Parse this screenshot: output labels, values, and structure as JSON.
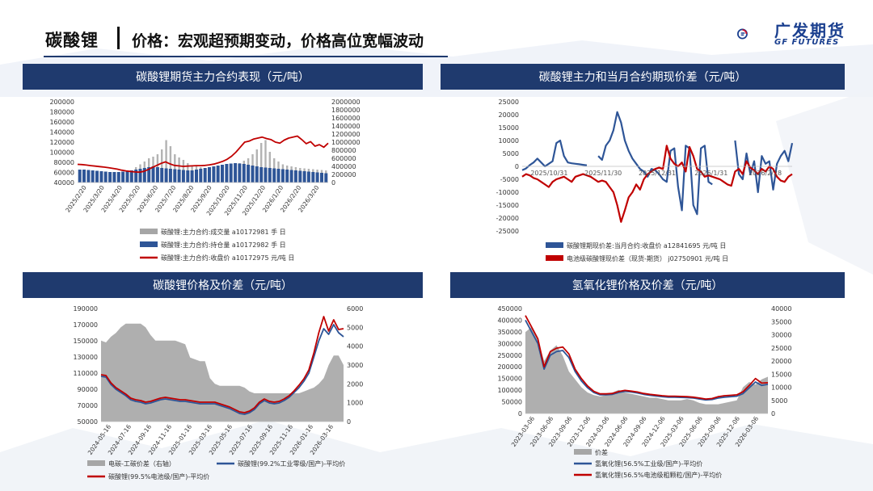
{
  "page": {
    "title": "碳酸锂",
    "subtitle": "价格：宏观超预期变动，价格高位宽幅波动",
    "logo_cn": "广发期货",
    "logo_en": "GF FUTURES",
    "colors": {
      "header_bg": "#1f3a6e",
      "accent_red": "#c8102e",
      "accent_blue": "#1a3f8f"
    }
  },
  "panels": [
    {
      "header": "碳酸锂期货主力合约表现（元/吨）"
    },
    {
      "header": "碳酸锂主力和当月合约期现价差（元/吨）"
    },
    {
      "header": "碳酸锂价格及价差（元/吨）"
    },
    {
      "header": "氢氧化锂价格及价差（元/吨）"
    }
  ],
  "chart_data": [
    {
      "type": "bar",
      "title": "碳酸锂期货主力合约表现（元/吨）",
      "x_ticks": [
        "2025/2/20",
        "2025/3/20",
        "2025/4/20",
        "2025/5/20",
        "2025/6/20",
        "2025/7/20",
        "2025/8/20",
        "2025/9/20",
        "2025/10/20",
        "2025/11/20",
        "2025/12/20",
        "2026/1/20",
        "2026/2/20",
        "2026/3/20"
      ],
      "y_left_ticks": [
        "40000",
        "60000",
        "80000",
        "100000",
        "120000",
        "140000",
        "160000",
        "180000",
        "200000"
      ],
      "y_right_ticks": [
        "0",
        "200000",
        "400000",
        "600000",
        "800000",
        "1000000",
        "1200000",
        "1400000",
        "1600000",
        "1800000",
        "2000000"
      ],
      "ylim_left": [
        40000,
        200000
      ],
      "ylim_right": [
        0,
        2000000
      ],
      "series": [
        {
          "name": "碳酸锂:主力合约:成交量 a10172981 手 日",
          "axis": "right",
          "kind": "bar",
          "color": "#a6a6a6",
          "values": [
            180000,
            160000,
            170000,
            150000,
            140000,
            130000,
            160000,
            200000,
            240000,
            200000,
            260000,
            280000,
            300000,
            380000,
            450000,
            520000,
            600000,
            640000,
            700000,
            820000,
            1050000,
            900000,
            700000,
            620000,
            560000,
            480000,
            420000,
            400000,
            380000,
            360000,
            340000,
            320000,
            300000,
            300000,
            320000,
            360000,
            420000,
            480000,
            540000,
            600000,
            700000,
            820000,
            980000,
            1050000,
            760000,
            600000,
            520000,
            450000,
            420000,
            400000,
            380000,
            360000,
            350000,
            340000,
            330000,
            320000,
            310000,
            300000
          ]
        },
        {
          "name": "碳酸锂:主力合约:持仓量 a10172982 手 日",
          "axis": "right",
          "kind": "bar",
          "color": "#2e5597",
          "values": [
            320000,
            320000,
            310000,
            300000,
            290000,
            280000,
            270000,
            260000,
            260000,
            260000,
            270000,
            280000,
            300000,
            320000,
            340000,
            360000,
            380000,
            400000,
            380000,
            360000,
            350000,
            340000,
            330000,
            320000,
            310000,
            300000,
            300000,
            320000,
            340000,
            360000,
            380000,
            400000,
            420000,
            440000,
            460000,
            470000,
            480000,
            470000,
            460000,
            440000,
            420000,
            400000,
            380000,
            370000,
            360000,
            350000,
            340000,
            330000,
            320000,
            310000,
            300000,
            290000,
            280000,
            270000,
            260000,
            250000,
            240000,
            230000
          ]
        },
        {
          "name": "碳酸锂:主力合约:收盘价 a10172975 元/吨 日",
          "axis": "left",
          "kind": "line",
          "color": "#c00000",
          "values": [
            76000,
            75500,
            74500,
            73500,
            72500,
            71500,
            70500,
            69500,
            68000,
            66500,
            64500,
            63000,
            62000,
            61000,
            60500,
            62000,
            65500,
            70000,
            74000,
            78000,
            81000,
            77000,
            74000,
            73000,
            72000,
            72500,
            73000,
            73500,
            73500,
            74000,
            75000,
            76500,
            79000,
            82000,
            86000,
            92000,
            100000,
            110000,
            120000,
            122000,
            126000,
            128000,
            130000,
            127000,
            125000,
            120000,
            118000,
            124000,
            128000,
            130000,
            132000,
            125000,
            117000,
            121000,
            112000,
            115000,
            110000,
            118000
          ]
        }
      ],
      "legend": "bottom"
    },
    {
      "type": "line",
      "title": "碳酸锂主力和当月合约期现价差（元/吨）",
      "x_ticks": [
        "2025/10/31",
        "2025/11/30",
        "2025/12/31",
        "2026/1/31",
        "2026/2/28"
      ],
      "y_ticks": [
        "-25000",
        "-20000",
        "-15000",
        "-10000",
        "-5000",
        "0",
        "5000",
        "10000",
        "15000",
        "20000",
        "25000"
      ],
      "ylim": [
        -25000,
        25000
      ],
      "series": [
        {
          "name": "碳酸锂期现价差:当月合约:收盘价 a12841695 元/吨 日",
          "color": "#2e5597",
          "values": [
            -1500,
            -800,
            500,
            1500,
            3000,
            1500,
            0,
            1000,
            2000,
            9000,
            10000,
            4000,
            1500,
            1200,
            1000,
            800,
            600,
            400,
            null,
            null,
            4000,
            2500,
            8000,
            10000,
            14000,
            21000,
            17000,
            10000,
            6000,
            3000,
            1000,
            -1000,
            -2000,
            -4000,
            -1000,
            -1500,
            -3000,
            -5000,
            -6000,
            6000,
            7000,
            -8000,
            -17000,
            8000,
            7000,
            -15000,
            -18500,
            7000,
            8000,
            -6000,
            -7000,
            null,
            null,
            null,
            null,
            null,
            10000,
            -3000,
            -5000,
            5000,
            -3000,
            2000,
            -10000,
            4000,
            1000,
            2000,
            -9000,
            1000,
            4000,
            6000,
            2000,
            9000
          ]
        },
        {
          "name": "电池级碳酸锂现价差（现货-期货） j02750901 元/吨 日",
          "color": "#c00000",
          "values": [
            -4000,
            -3000,
            -3500,
            -4500,
            -5000,
            -6000,
            -7000,
            -8000,
            -6000,
            -5000,
            -4500,
            -4000,
            -5000,
            -6000,
            -4000,
            -3500,
            -3000,
            -3500,
            -4000,
            -5000,
            -6000,
            -5500,
            -6000,
            -8000,
            -10000,
            -15000,
            -21500,
            -17000,
            -12000,
            -10000,
            -7000,
            -9000,
            -5000,
            -3000,
            -2000,
            -1000,
            -500,
            -1000,
            8000,
            3000,
            1000,
            0,
            1500,
            -2000,
            7500,
            4000,
            -1000,
            -2000,
            -4000,
            -3500,
            -4000,
            -4500,
            -5000,
            -6000,
            -7000,
            -7500,
            -2000,
            -1000,
            -3000,
            2000,
            -500,
            -1500,
            -3000,
            -1000,
            -2000,
            0,
            -1000,
            -4000,
            -5500,
            -6000,
            -4000,
            -3000
          ]
        }
      ],
      "legend": "bottom"
    },
    {
      "type": "area",
      "title": "碳酸锂价格及价差（元/吨）",
      "x_ticks": [
        "2024-05-16",
        "2024-07-16",
        "2024-09-16",
        "2024-11-16",
        "2025-01-16",
        "2025-03-16",
        "2025-05-16",
        "2025-07-16",
        "2025-09-16",
        "2025-11-16",
        "2026-01-16",
        "2026-03-16"
      ],
      "y_left_ticks": [
        "50000",
        "70000",
        "90000",
        "110000",
        "130000",
        "150000",
        "170000",
        "190000"
      ],
      "y_right_ticks": [
        "0",
        "1000",
        "2000",
        "3000",
        "4000",
        "5000",
        "6000"
      ],
      "ylim_left": [
        50000,
        190000
      ],
      "ylim_right": [
        0,
        6000
      ],
      "series": [
        {
          "name": "电碳-工碳价差（右轴）",
          "axis": "right",
          "kind": "area",
          "color": "#a6a6a6",
          "values": [
            4300,
            4200,
            4500,
            4700,
            5000,
            5200,
            5200,
            5200,
            5200,
            5000,
            4600,
            4300,
            4300,
            4300,
            4300,
            4300,
            4200,
            4100,
            3400,
            3300,
            3200,
            3200,
            2300,
            2000,
            1900,
            1900,
            1900,
            1900,
            1900,
            1800,
            1600,
            1500,
            1500,
            1500,
            1500,
            1500,
            1500,
            1500,
            1500,
            1500,
            1500,
            1600,
            1700,
            1800,
            2000,
            2300,
            3000,
            3500,
            3500,
            3000
          ]
        },
        {
          "name": "碳酸锂(99.2%工业零级/国产)-平均价",
          "axis": "left",
          "kind": "line",
          "color": "#2e5597",
          "values": [
            106000,
            105000,
            96000,
            90000,
            86000,
            82000,
            77000,
            75000,
            74000,
            72000,
            73000,
            75000,
            77000,
            78000,
            77000,
            76000,
            75000,
            75000,
            74000,
            73000,
            72000,
            72000,
            72000,
            72000,
            70000,
            68000,
            66000,
            63000,
            60000,
            59000,
            61000,
            65000,
            72000,
            76000,
            73000,
            72000,
            73000,
            76000,
            80000,
            86000,
            92000,
            100000,
            110000,
            130000,
            150000,
            165000,
            158000,
            170000,
            160000,
            155000
          ]
        },
        {
          "name": "碳酸锂(99.5%电池级/国产)-平均价",
          "axis": "left",
          "kind": "line",
          "color": "#c00000",
          "values": [
            108000,
            107000,
            98000,
            92000,
            88000,
            84000,
            79000,
            77000,
            76000,
            74000,
            75000,
            77000,
            79000,
            80000,
            79000,
            78000,
            77000,
            77000,
            76000,
            75000,
            74000,
            74000,
            74000,
            74000,
            72000,
            70000,
            68000,
            65000,
            62000,
            61000,
            63000,
            67000,
            74000,
            78000,
            75000,
            74000,
            75000,
            78000,
            82000,
            88000,
            95000,
            103000,
            114000,
            135000,
            160000,
            180000,
            162000,
            176000,
            164000,
            165000
          ]
        }
      ],
      "legend": "bottom"
    },
    {
      "type": "area",
      "title": "氢氧化锂价格及价差（元/吨）",
      "x_ticks": [
        "2023-03-06",
        "2023-06-06",
        "2023-09-06",
        "2023-12-06",
        "2024-03-06",
        "2024-06-06",
        "2024-09-06",
        "2024-12-06",
        "2025-03-06",
        "2025-06-06",
        "2025-09-06",
        "2025-12-06",
        "2026-03-06"
      ],
      "y_left_ticks": [
        "0",
        "50000",
        "100000",
        "150000",
        "200000",
        "250000",
        "300000",
        "350000",
        "400000",
        "450000"
      ],
      "y_right_ticks": [
        "0",
        "5000",
        "10000",
        "15000",
        "20000",
        "25000",
        "30000",
        "35000",
        "40000"
      ],
      "ylim_left": [
        0,
        450000
      ],
      "ylim_right": [
        0,
        40000
      ],
      "series": [
        {
          "name": "价差",
          "axis": "right",
          "kind": "area",
          "color": "#a6a6a6",
          "values": [
            31000,
            33000,
            28000,
            20000,
            24000,
            26000,
            22000,
            16000,
            13000,
            10000,
            8000,
            7000,
            6500,
            7000,
            8000,
            9000,
            8000,
            7500,
            7000,
            6500,
            6000,
            6000,
            5500,
            5000,
            5000,
            5000,
            5500,
            5000,
            4000,
            3500,
            3500,
            3500,
            4000,
            4500,
            5000,
            10000,
            12000,
            11000,
            13000,
            14000
          ]
        },
        {
          "name": "氢氧化锂(56.5%工业级/国产)-平均价",
          "axis": "left",
          "kind": "line",
          "color": "#2e5597",
          "values": [
            400000,
            350000,
            300000,
            190000,
            250000,
            265000,
            270000,
            240000,
            180000,
            140000,
            110000,
            90000,
            80000,
            80000,
            82000,
            90000,
            95000,
            92000,
            88000,
            82000,
            78000,
            75000,
            72000,
            70000,
            70000,
            69000,
            68000,
            66000,
            62000,
            58000,
            60000,
            66000,
            70000,
            72000,
            74000,
            85000,
            110000,
            135000,
            120000,
            125000
          ]
        },
        {
          "name": "氢氧化锂(56.5%电池级粗颗粒/国产)-平均价",
          "axis": "left",
          "kind": "line",
          "color": "#c00000",
          "values": [
            420000,
            370000,
            320000,
            200000,
            265000,
            280000,
            285000,
            255000,
            190000,
            150000,
            118000,
            95000,
            84000,
            84000,
            86000,
            94000,
            99000,
            96000,
            92000,
            86000,
            82000,
            79000,
            76000,
            74000,
            74000,
            73000,
            72000,
            70000,
            66000,
            62000,
            64000,
            72000,
            76000,
            78000,
            80000,
            93000,
            120000,
            150000,
            130000,
            132000
          ]
        }
      ],
      "legend": "bottom"
    }
  ]
}
